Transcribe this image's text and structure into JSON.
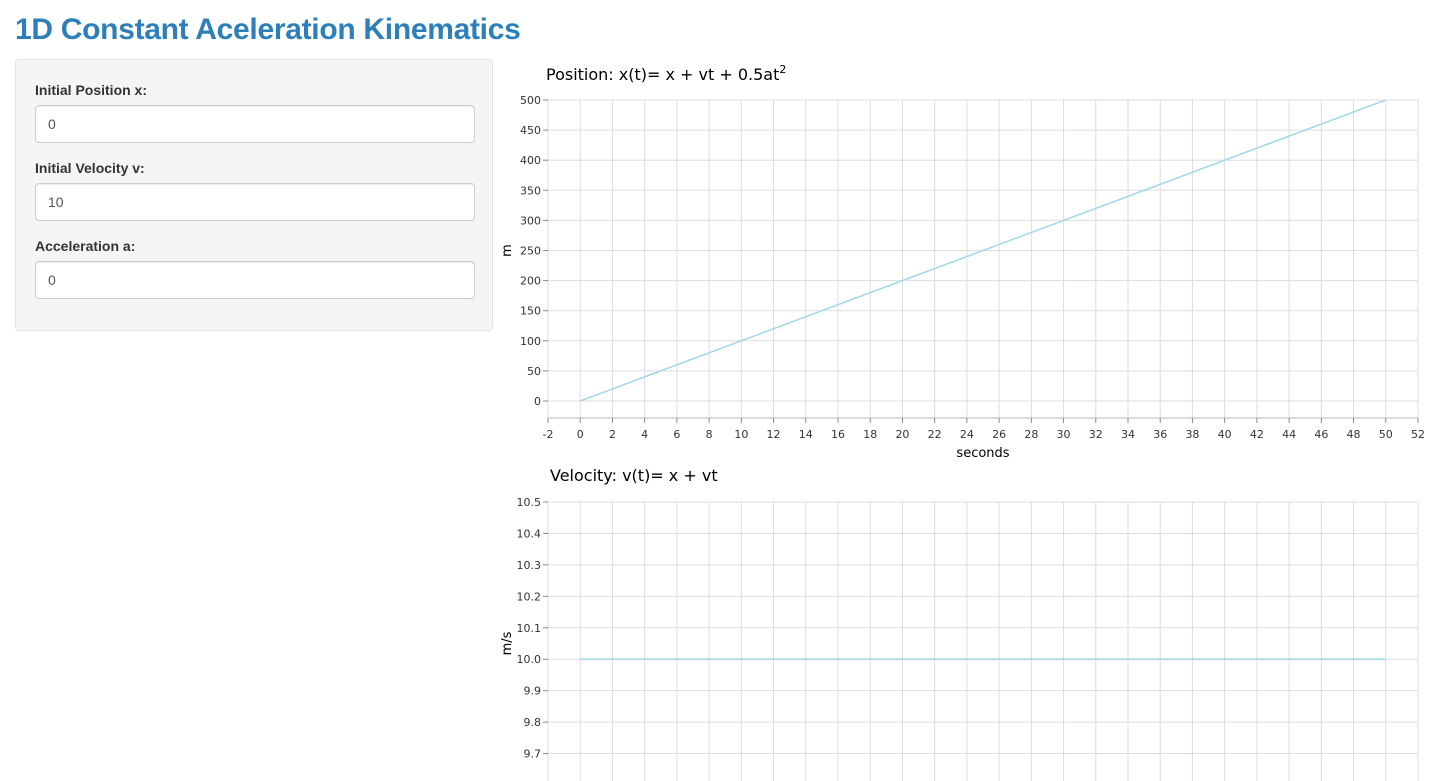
{
  "page": {
    "title": "1D Constant Aceleration Kinematics"
  },
  "sidebar": {
    "fields": [
      {
        "label": "Initial Position x:",
        "value": "0"
      },
      {
        "label": "Initial Velocity v:",
        "value": "10"
      },
      {
        "label": "Acceleration a:",
        "value": "0"
      }
    ]
  },
  "chart_data": [
    {
      "type": "line",
      "title": "Position: x(t)= x + vt + 0.5at",
      "title_superscript": "2",
      "xlabel": "seconds",
      "ylabel": "m",
      "xlim": [
        -2,
        52
      ],
      "ylim": [
        0,
        500
      ],
      "xticks": [
        "-2",
        "0",
        "2",
        "4",
        "6",
        "8",
        "10",
        "12",
        "14",
        "16",
        "18",
        "20",
        "22",
        "24",
        "26",
        "28",
        "30",
        "32",
        "34",
        "36",
        "38",
        "40",
        "42",
        "44",
        "46",
        "48",
        "50",
        "52"
      ],
      "yticks": [
        "0",
        "50",
        "100",
        "150",
        "200",
        "250",
        "300",
        "350",
        "400",
        "450",
        "500"
      ],
      "grid": true,
      "series": [
        {
          "color": "#a6d9e6",
          "x": [
            0,
            50
          ],
          "y": [
            0,
            500
          ]
        }
      ]
    },
    {
      "type": "line",
      "title": "Velocity: v(t)= x + vt",
      "xlabel": "",
      "ylabel": "m/s",
      "xlim": [
        -2,
        52
      ],
      "ylim": [
        9.6,
        10.5
      ],
      "yticks": [
        "9.7",
        "9.8",
        "9.9",
        "10.0",
        "10.1",
        "10.2",
        "10.3",
        "10.4",
        "10.5"
      ],
      "grid": true,
      "series": [
        {
          "color": "#a6d9e6",
          "x": [
            0,
            50
          ],
          "y": [
            10,
            10
          ]
        }
      ]
    }
  ]
}
